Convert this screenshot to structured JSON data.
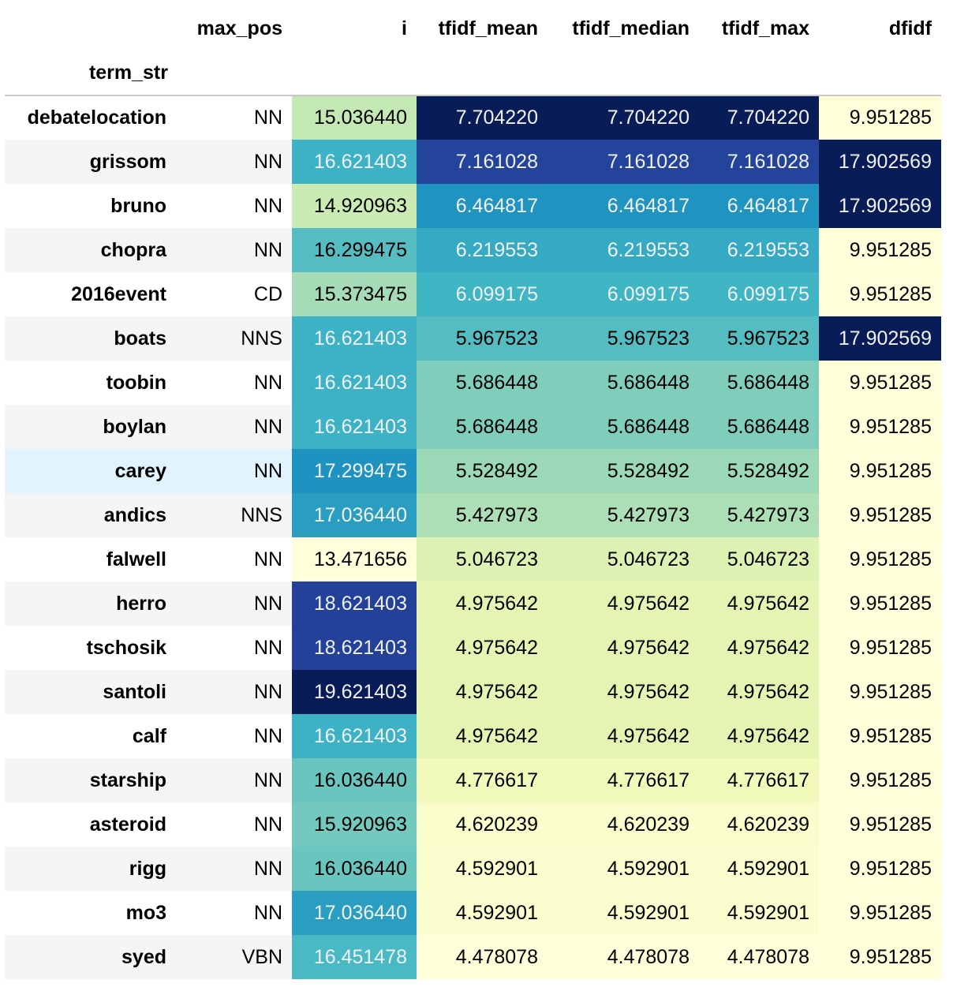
{
  "table": {
    "columns": [
      "max_pos",
      "i",
      "tfidf_mean",
      "tfidf_median",
      "tfidf_max",
      "dfidf"
    ],
    "index_name": "term_str",
    "hover_row": 8,
    "colors": {
      "heat_low": "#ffffd9",
      "heat_high": "#081d58",
      "hover_bg": "#e1f3fd",
      "stripe_bg": "#f5f5f5"
    },
    "colormap": "YlGnBu",
    "rows": [
      {
        "term": "debatelocation",
        "max_pos": "NN",
        "i": "15.036440",
        "tfidf_mean": "7.704220",
        "tfidf_median": "7.704220",
        "tfidf_max": "7.704220",
        "dfidf": "9.951285"
      },
      {
        "term": "grissom",
        "max_pos": "NN",
        "i": "16.621403",
        "tfidf_mean": "7.161028",
        "tfidf_median": "7.161028",
        "tfidf_max": "7.161028",
        "dfidf": "17.902569"
      },
      {
        "term": "bruno",
        "max_pos": "NN",
        "i": "14.920963",
        "tfidf_mean": "6.464817",
        "tfidf_median": "6.464817",
        "tfidf_max": "6.464817",
        "dfidf": "17.902569"
      },
      {
        "term": "chopra",
        "max_pos": "NN",
        "i": "16.299475",
        "tfidf_mean": "6.219553",
        "tfidf_median": "6.219553",
        "tfidf_max": "6.219553",
        "dfidf": "9.951285"
      },
      {
        "term": "2016event",
        "max_pos": "CD",
        "i": "15.373475",
        "tfidf_mean": "6.099175",
        "tfidf_median": "6.099175",
        "tfidf_max": "6.099175",
        "dfidf": "9.951285"
      },
      {
        "term": "boats",
        "max_pos": "NNS",
        "i": "16.621403",
        "tfidf_mean": "5.967523",
        "tfidf_median": "5.967523",
        "tfidf_max": "5.967523",
        "dfidf": "17.902569"
      },
      {
        "term": "toobin",
        "max_pos": "NN",
        "i": "16.621403",
        "tfidf_mean": "5.686448",
        "tfidf_median": "5.686448",
        "tfidf_max": "5.686448",
        "dfidf": "9.951285"
      },
      {
        "term": "boylan",
        "max_pos": "NN",
        "i": "16.621403",
        "tfidf_mean": "5.686448",
        "tfidf_median": "5.686448",
        "tfidf_max": "5.686448",
        "dfidf": "9.951285"
      },
      {
        "term": "carey",
        "max_pos": "NN",
        "i": "17.299475",
        "tfidf_mean": "5.528492",
        "tfidf_median": "5.528492",
        "tfidf_max": "5.528492",
        "dfidf": "9.951285"
      },
      {
        "term": "andics",
        "max_pos": "NNS",
        "i": "17.036440",
        "tfidf_mean": "5.427973",
        "tfidf_median": "5.427973",
        "tfidf_max": "5.427973",
        "dfidf": "9.951285"
      },
      {
        "term": "falwell",
        "max_pos": "NN",
        "i": "13.471656",
        "tfidf_mean": "5.046723",
        "tfidf_median": "5.046723",
        "tfidf_max": "5.046723",
        "dfidf": "9.951285"
      },
      {
        "term": "herro",
        "max_pos": "NN",
        "i": "18.621403",
        "tfidf_mean": "4.975642",
        "tfidf_median": "4.975642",
        "tfidf_max": "4.975642",
        "dfidf": "9.951285"
      },
      {
        "term": "tschosik",
        "max_pos": "NN",
        "i": "18.621403",
        "tfidf_mean": "4.975642",
        "tfidf_median": "4.975642",
        "tfidf_max": "4.975642",
        "dfidf": "9.951285"
      },
      {
        "term": "santoli",
        "max_pos": "NN",
        "i": "19.621403",
        "tfidf_mean": "4.975642",
        "tfidf_median": "4.975642",
        "tfidf_max": "4.975642",
        "dfidf": "9.951285"
      },
      {
        "term": "calf",
        "max_pos": "NN",
        "i": "16.621403",
        "tfidf_mean": "4.975642",
        "tfidf_median": "4.975642",
        "tfidf_max": "4.975642",
        "dfidf": "9.951285"
      },
      {
        "term": "starship",
        "max_pos": "NN",
        "i": "16.036440",
        "tfidf_mean": "4.776617",
        "tfidf_median": "4.776617",
        "tfidf_max": "4.776617",
        "dfidf": "9.951285"
      },
      {
        "term": "asteroid",
        "max_pos": "NN",
        "i": "15.920963",
        "tfidf_mean": "4.620239",
        "tfidf_median": "4.620239",
        "tfidf_max": "4.620239",
        "dfidf": "9.951285"
      },
      {
        "term": "rigg",
        "max_pos": "NN",
        "i": "16.036440",
        "tfidf_mean": "4.592901",
        "tfidf_median": "4.592901",
        "tfidf_max": "4.592901",
        "dfidf": "9.951285"
      },
      {
        "term": "mo3",
        "max_pos": "NN",
        "i": "17.036440",
        "tfidf_mean": "4.592901",
        "tfidf_median": "4.592901",
        "tfidf_max": "4.592901",
        "dfidf": "9.951285"
      },
      {
        "term": "syed",
        "max_pos": "VBN",
        "i": "16.451478",
        "tfidf_mean": "4.478078",
        "tfidf_median": "4.478078",
        "tfidf_max": "4.478078",
        "dfidf": "9.951285"
      }
    ]
  }
}
